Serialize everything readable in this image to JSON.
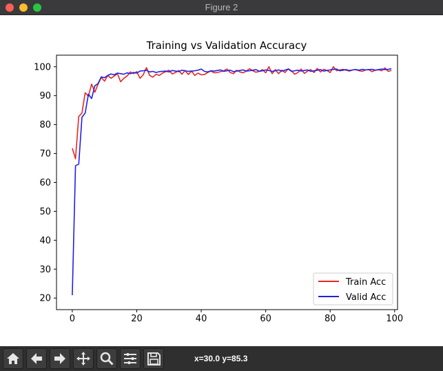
{
  "window": {
    "title": "Figure 2",
    "buttons": [
      "close",
      "minimize",
      "maximize"
    ]
  },
  "toolbar": {
    "tools": [
      {
        "name": "home-icon"
      },
      {
        "name": "back-arrow-icon"
      },
      {
        "name": "forward-arrow-icon"
      },
      {
        "name": "pan-move-icon"
      },
      {
        "name": "zoom-magnifier-icon"
      },
      {
        "name": "configure-subplots-icon"
      },
      {
        "name": "save-floppy-icon"
      }
    ],
    "coords": "x=30.0 y=85.3"
  },
  "colors": {
    "train": "#e8261f",
    "valid": "#1f1fe6"
  },
  "chart_data": {
    "type": "line",
    "title": "Training vs Validation Accuracy",
    "xlabel": "",
    "ylabel": "",
    "xlim": [
      -4.9,
      100.9
    ],
    "ylim": [
      16.0,
      104.0
    ],
    "xticks": [
      0,
      20,
      40,
      60,
      80,
      100
    ],
    "yticks": [
      20,
      30,
      40,
      50,
      60,
      70,
      80,
      90,
      100
    ],
    "legend_position": "lower-right",
    "grid": false,
    "series": [
      {
        "name": "Train Acc",
        "color_key": "train",
        "x": [
          0,
          1,
          2,
          3,
          4,
          5,
          6,
          7,
          8,
          9,
          10,
          11,
          12,
          13,
          14,
          15,
          16,
          17,
          18,
          19,
          20,
          21,
          22,
          23,
          24,
          25,
          26,
          27,
          28,
          29,
          30,
          31,
          32,
          33,
          34,
          35,
          36,
          37,
          38,
          39,
          40,
          41,
          42,
          43,
          44,
          45,
          46,
          47,
          48,
          49,
          50,
          51,
          52,
          53,
          54,
          55,
          56,
          57,
          58,
          59,
          60,
          61,
          62,
          63,
          64,
          65,
          66,
          67,
          68,
          69,
          70,
          71,
          72,
          73,
          74,
          75,
          76,
          77,
          78,
          79,
          80,
          81,
          82,
          83,
          84,
          85,
          86,
          87,
          88,
          89,
          90,
          91,
          92,
          93,
          94,
          95,
          96,
          97,
          98,
          99
        ],
        "values": [
          71.8,
          68.2,
          82.8,
          84.0,
          91.0,
          89.8,
          94.0,
          91.2,
          94.0,
          96.3,
          95.0,
          97.0,
          96.0,
          96.8,
          97.6,
          94.8,
          96.0,
          96.8,
          98.2,
          97.6,
          98.3,
          96.0,
          97.2,
          99.7,
          97.0,
          96.4,
          97.4,
          97.0,
          97.8,
          98.3,
          98.8,
          97.5,
          98.0,
          98.7,
          97.4,
          98.7,
          97.3,
          98.5,
          97.0,
          97.8,
          97.2,
          97.3,
          98.0,
          98.5,
          97.9,
          98.0,
          98.3,
          98.6,
          99.2,
          98.0,
          97.6,
          98.8,
          98.2,
          97.9,
          98.5,
          99.3,
          98.6,
          98.1,
          98.4,
          99.0,
          97.9,
          100.0,
          97.6,
          99.0,
          97.6,
          98.8,
          98.0,
          99.3,
          98.6,
          97.4,
          98.0,
          99.2,
          97.7,
          98.5,
          99.0,
          98.0,
          99.4,
          98.2,
          99.1,
          98.7,
          98.0,
          100.0,
          98.6,
          98.9,
          99.1,
          98.8,
          98.5,
          98.9,
          99.0,
          98.6,
          98.4,
          98.9,
          99.0,
          98.3,
          98.8,
          99.0,
          98.6,
          99.6,
          98.4,
          98.7
        ]
      },
      {
        "name": "Valid Acc",
        "color_key": "valid",
        "x": [
          0,
          1,
          2,
          3,
          4,
          5,
          6,
          7,
          8,
          9,
          10,
          11,
          12,
          13,
          14,
          15,
          16,
          17,
          18,
          19,
          20,
          21,
          22,
          23,
          24,
          25,
          26,
          27,
          28,
          29,
          30,
          31,
          32,
          33,
          34,
          35,
          36,
          37,
          38,
          39,
          40,
          41,
          42,
          43,
          44,
          45,
          46,
          47,
          48,
          49,
          50,
          51,
          52,
          53,
          54,
          55,
          56,
          57,
          58,
          59,
          60,
          61,
          62,
          63,
          64,
          65,
          66,
          67,
          68,
          69,
          70,
          71,
          72,
          73,
          74,
          75,
          76,
          77,
          78,
          79,
          80,
          81,
          82,
          83,
          84,
          85,
          86,
          87,
          88,
          89,
          90,
          91,
          92,
          93,
          94,
          95,
          96,
          97,
          98,
          99
        ],
        "values": [
          21.0,
          65.8,
          66.3,
          82.5,
          84.0,
          90.5,
          89.0,
          93.4,
          94.2,
          96.5,
          96.2,
          97.0,
          97.5,
          97.2,
          97.8,
          97.6,
          97.4,
          97.9,
          97.6,
          98.0,
          97.8,
          98.5,
          98.6,
          98.8,
          98.2,
          98.4,
          98.0,
          98.3,
          98.4,
          98.5,
          98.2,
          98.7,
          98.5,
          98.3,
          98.8,
          98.6,
          98.4,
          98.5,
          98.6,
          98.8,
          99.2,
          98.4,
          98.2,
          98.6,
          98.5,
          98.7,
          98.9,
          98.4,
          98.6,
          98.8,
          98.3,
          98.5,
          98.7,
          98.9,
          98.5,
          98.6,
          98.8,
          99.0,
          98.4,
          98.6,
          98.9,
          98.7,
          98.4,
          98.6,
          98.9,
          98.5,
          98.8,
          99.2,
          98.4,
          98.6,
          98.8,
          98.5,
          98.7,
          98.9,
          98.4,
          98.6,
          98.8,
          99.0,
          98.5,
          98.7,
          98.9,
          99.1,
          99.2,
          98.6,
          98.8,
          99.0,
          98.7,
          98.9,
          99.0,
          98.8,
          99.1,
          98.9,
          99.0,
          99.1,
          98.8,
          99.0,
          99.2,
          99.0,
          99.1,
          99.3
        ]
      }
    ]
  }
}
